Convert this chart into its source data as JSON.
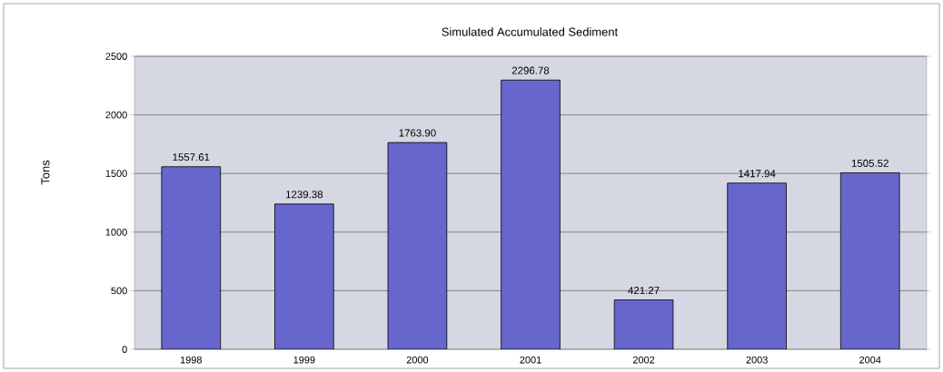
{
  "chart_data": {
    "type": "bar",
    "title": "Simulated Accumulated Sediment",
    "ylabel": "Tons",
    "categories": [
      "1998",
      "1999",
      "2000",
      "2001",
      "2002",
      "2003",
      "2004"
    ],
    "values": [
      1557.61,
      1239.38,
      1763.9,
      2296.78,
      421.27,
      1417.94,
      1505.52
    ],
    "value_labels": [
      "1557.61",
      "1239.38",
      "1763.90",
      "2296.78",
      "421.27",
      "1417.94",
      "1505.52"
    ],
    "color": "#6666cc",
    "ylim": [
      0,
      2500
    ],
    "yticks": [
      0,
      500,
      1000,
      1500,
      2000,
      2500
    ],
    "grid": "y"
  }
}
